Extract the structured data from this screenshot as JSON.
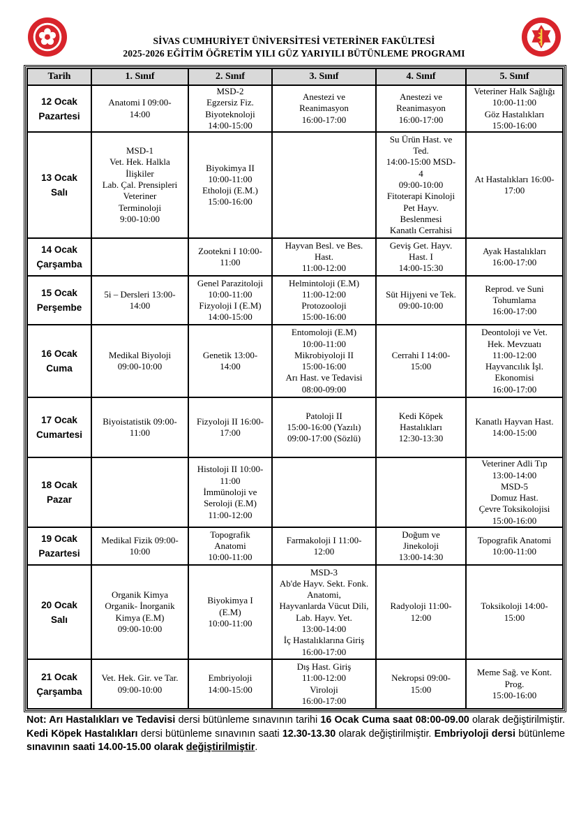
{
  "header": {
    "line1": "SİVAS CUMHURİYET ÜNİVERSİTESİ VETERİNER FAKÜLTESİ",
    "line2": "2025-2026 EĞİTİM ÖĞRETİM YILI GÜZ YARIYILI BÜTÜNLEME PROGRAMI",
    "logo_left_text": "SİVAS CUMHURİYET ÜNİVERSİTESİ 1974",
    "logo_right_text": "VETERİNER FAKÜLTESİ",
    "accent_color": "#d8242b"
  },
  "table": {
    "columns": [
      "Tarih",
      "1. Sınıf",
      "2. Sınıf",
      "3. Sınıf",
      "4. Sınıf",
      "5. Sınıf"
    ],
    "rows": [
      {
        "date": [
          "12 Ocak",
          "Pazartesi"
        ],
        "cells": [
          [
            "Anatomi I 09:00-",
            "14:00"
          ],
          [
            "MSD-2",
            "Egzersiz Fiz.",
            "Biyoteknoloji",
            "14:00-15:00"
          ],
          [
            "Anestezi ve",
            "Reanimasyon",
            "16:00-17:00"
          ],
          [
            "Anestezi ve",
            "Reanimasyon",
            "16:00-17:00"
          ],
          [
            "Veteriner Halk Sağlığı",
            "10:00-11:00",
            "Göz Hastalıkları",
            "15:00-16:00"
          ]
        ]
      },
      {
        "date": [
          "13 Ocak",
          "Salı"
        ],
        "cells": [
          [
            "MSD-1",
            "Vet. Hek. Halkla",
            "İlişkiler",
            "Lab. Çal. Prensipleri",
            "Veteriner",
            "Terminoloji",
            "9:00-10:00"
          ],
          [
            "Biyokimya II",
            "10:00-11:00",
            "Etholoji (E.M.)",
            "15:00-16:00"
          ],
          [],
          [
            "Su Ürün Hast. ve",
            "Ted.",
            "14:00-15:00 MSD-",
            "4",
            "09:00-10:00",
            "Fitoterapi Kinoloji",
            "Pet Hayv.",
            "Beslenmesi",
            "Kanatlı Cerrahisi"
          ],
          [
            "At Hastalıkları 16:00-",
            "17:00"
          ]
        ]
      },
      {
        "date": [
          "14 Ocak",
          "Çarşamba"
        ],
        "cells": [
          [],
          [
            "Zootekni I 10:00-",
            "11:00"
          ],
          [
            "Hayvan Besl. ve Bes.",
            "Hast.",
            "11:00-12:00"
          ],
          [
            "Geviş Get. Hayv.",
            "Hast. I",
            "14:00-15:30"
          ],
          [
            "Ayak Hastalıkları",
            "16:00-17:00"
          ]
        ]
      },
      {
        "date": [
          "15 Ocak",
          "Perşembe"
        ],
        "cells": [
          [
            "5i – Dersleri 13:00-",
            "14:00"
          ],
          [
            "Genel Parazitoloji",
            "10:00-11:00",
            "Fizyoloji I (E.M)",
            "14:00-15:00"
          ],
          [
            "Helmintoloji (E.M)",
            "11:00-12:00",
            "Protozooloji",
            "15:00-16:00"
          ],
          [
            "Süt Hijyeni ve Tek.",
            "09:00-10:00"
          ],
          [
            "Reprod. ve Suni",
            "Tohumlama",
            "16:00-17:00"
          ]
        ]
      },
      {
        "date": [
          "16 Ocak",
          "Cuma"
        ],
        "cells": [
          [
            "Medikal Biyoloji",
            "09:00-10:00"
          ],
          [
            "Genetik 13:00-",
            "14:00"
          ],
          [
            "Entomoloji (E.M)",
            "10:00-11:00",
            "Mikrobiyoloji II",
            "15:00-16:00",
            "Arı Hast. ve Tedavisi",
            "08:00-09:00"
          ],
          [
            "Cerrahi I 14:00-",
            "15:00"
          ],
          [
            "Deontoloji ve Vet.",
            "Hek. Mevzuatı",
            "11:00-12:00",
            "Hayvancılık İşl.",
            "Ekonomisi",
            "16:00-17:00"
          ]
        ]
      },
      {
        "date": [
          "17 Ocak",
          "Cumartesi"
        ],
        "cells": [
          [
            "Biyoistatistik 09:00-",
            "11:00"
          ],
          [
            "Fizyoloji II 16:00-",
            "17:00"
          ],
          [
            "Patoloji II",
            "15:00-16:00 (Yazılı)",
            "09:00-17:00 (Sözlü)"
          ],
          [
            "Kedi Köpek",
            "Hastalıkları",
            "12:30-13:30"
          ],
          [
            "Kanatlı Hayvan Hast.",
            "14:00-15:00"
          ]
        ]
      },
      {
        "date": [
          "18 Ocak",
          "Pazar"
        ],
        "cells": [
          [],
          [
            "Histoloji II 10:00-",
            "11:00",
            "İmmünoloji ve",
            "Seroloji (E.M)",
            "11:00-12:00"
          ],
          [],
          [],
          [
            "Veteriner Adli Tıp",
            "13:00-14:00",
            "MSD-5",
            "Domuz Hast.",
            "Çevre Toksikolojisi",
            "15:00-16:00"
          ]
        ]
      },
      {
        "date": [
          "19 Ocak",
          "Pazartesi"
        ],
        "cells": [
          [
            "Medikal Fizik 09:00-",
            "10:00"
          ],
          [
            "Topografik",
            "Anatomi",
            "10:00-11:00"
          ],
          [
            "Farmakoloji I 11:00-",
            "12:00"
          ],
          [
            "Doğum ve",
            "Jinekoloji",
            "13:00-14:30"
          ],
          [
            "Topografik Anatomi",
            "10:00-11:00"
          ]
        ]
      },
      {
        "date": [
          "20 Ocak",
          "Salı"
        ],
        "cells": [
          [
            "Organik Kimya",
            "Organik- İnorganik",
            "Kimya (E.M)",
            "09:00-10:00"
          ],
          [
            "Biyokimya I",
            "(E.M)",
            "10:00-11:00"
          ],
          [
            "MSD-3",
            "Ab'de Hayv. Sekt. Fonk.",
            "Anatomi,",
            "Hayvanlarda Vücut Dili,",
            "Lab. Hayv. Yet.",
            "13:00-14:00",
            "İç Hastalıklarına Giriş",
            "16:00-17:00"
          ],
          [
            "Radyoloji 11:00-",
            "12:00"
          ],
          [
            "Toksikoloji 14:00-",
            "15:00"
          ]
        ]
      },
      {
        "date": [
          "21 Ocak",
          "Çarşamba"
        ],
        "cells": [
          [
            "Vet. Hek. Gir. ve Tar.",
            "09:00-10:00"
          ],
          [
            "Embriyoloji",
            "14:00-15:00"
          ],
          [
            "Dış Hast. Giriş",
            "11:00-12:00",
            "Viroloji",
            "16:00-17:00"
          ],
          [
            "Nekropsi 09:00-",
            "15:00"
          ],
          [
            "Meme Sağ. ve Kont.",
            "Prog.",
            "15:00-16:00"
          ]
        ]
      }
    ]
  },
  "note": [
    {
      "text": "Not: Arı Hastalıkları ve Tedavisi",
      "bold": true
    },
    {
      "text": " dersi bütünleme sınavının tarihi ",
      "bold": false
    },
    {
      "text": "16 Ocak Cuma saat 08:00-09.00",
      "bold": true
    },
    {
      "text": " olarak değiştirilmiştir. ",
      "bold": false
    },
    {
      "text": "Kedi Köpek Hastalıkları",
      "bold": true
    },
    {
      "text": " dersi bütünleme sınavının saati ",
      "bold": false
    },
    {
      "text": "12.30-13.30",
      "bold": true
    },
    {
      "text": " olarak değiştirilmiştir. ",
      "bold": false
    },
    {
      "text": "Embriyoloji dersi",
      "bold": true
    },
    {
      "text": " bütünleme ",
      "bold": false
    },
    {
      "text": "sınavının saati 14.00-15.00 olarak ",
      "bold": true
    },
    {
      "text": "değiştirilmiştir",
      "bold": true,
      "underline": true
    },
    {
      "text": ".",
      "bold": false
    }
  ]
}
